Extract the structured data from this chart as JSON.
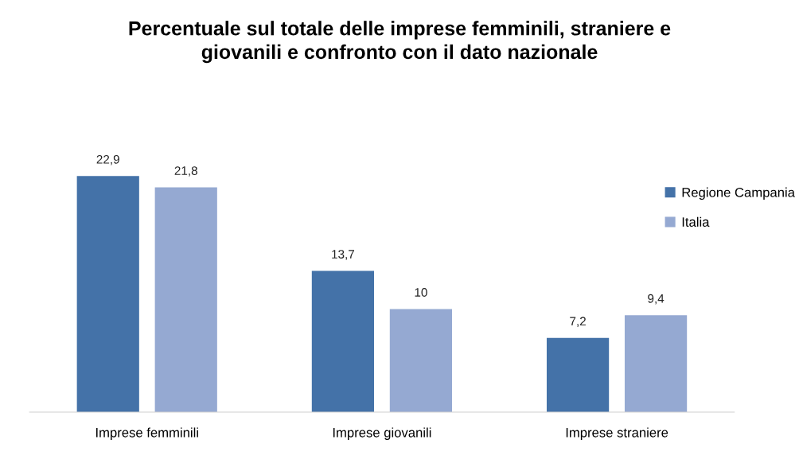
{
  "chart_data": {
    "type": "bar",
    "title": "Percentuale sul totale delle imprese femminili, straniere e\ngiovanili e confronto con il dato nazionale",
    "categories": [
      "Imprese femminili",
      "Imprese giovanili",
      "Imprese straniere"
    ],
    "series": [
      {
        "name": "Regione Campania",
        "color": "#4472a8",
        "values": [
          22.9,
          13.7,
          7.2
        ],
        "value_labels": [
          "22,9",
          "13,7",
          "7,2"
        ]
      },
      {
        "name": "Italia",
        "color": "#95a9d2",
        "values": [
          21.8,
          10,
          9.4
        ],
        "value_labels": [
          "21,8",
          "10",
          "9,4"
        ]
      }
    ],
    "tick_labels": "x",
    "legend": "right",
    "grid": false
  }
}
